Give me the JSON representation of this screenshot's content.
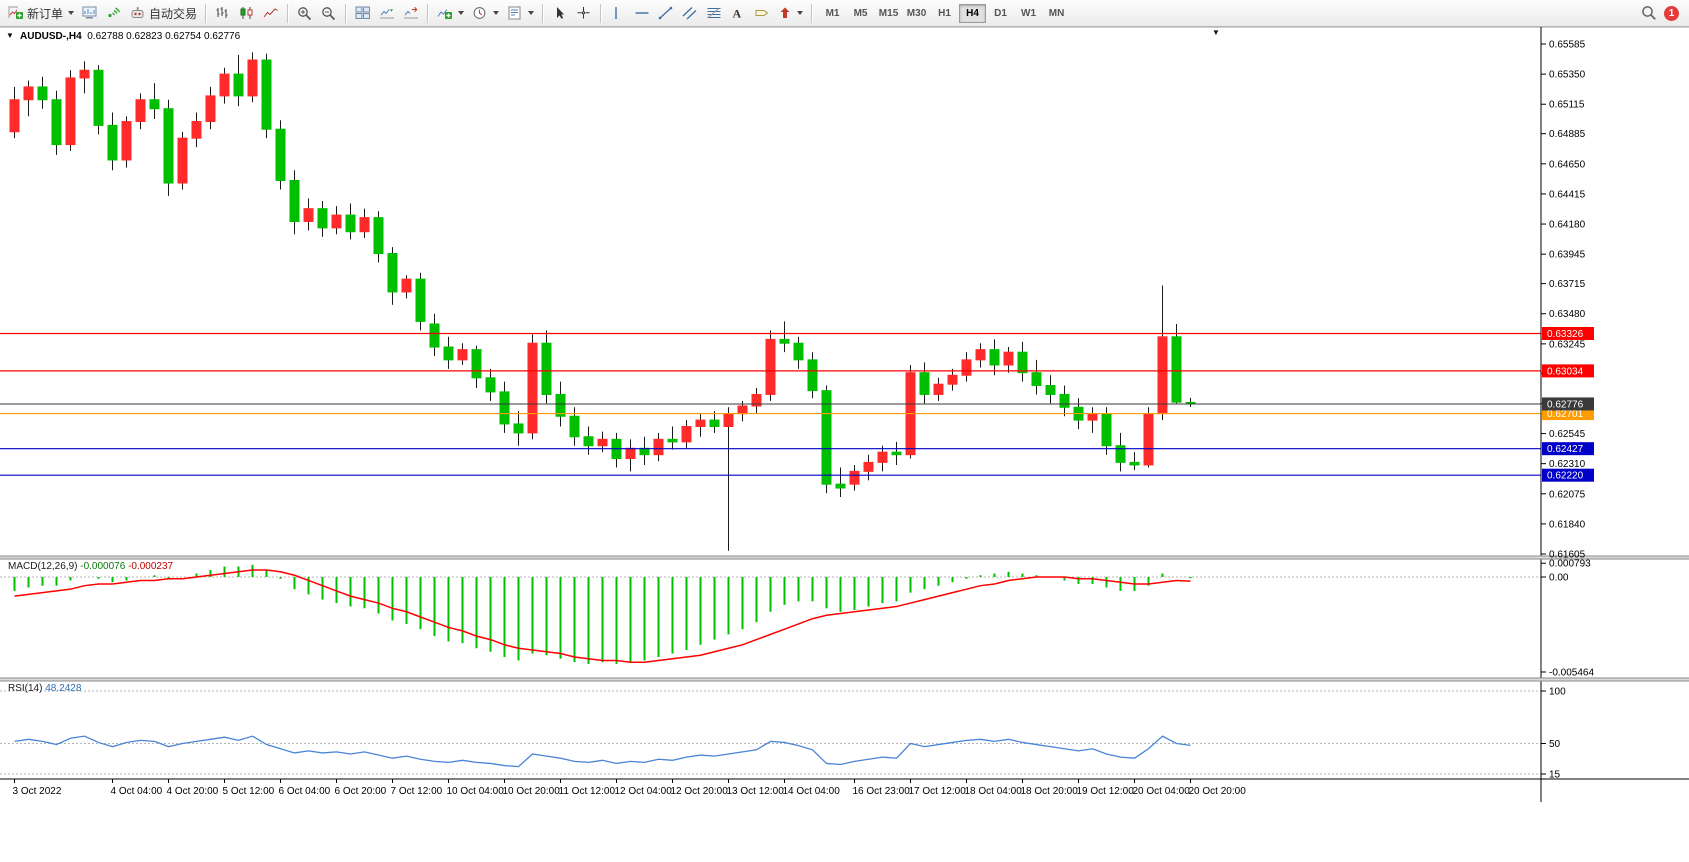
{
  "toolbar": {
    "new_order_label": "新订单",
    "autotrade_label": "自动交易",
    "timeframes": [
      "M1",
      "M5",
      "M15",
      "M30",
      "H1",
      "H4",
      "D1",
      "W1",
      "MN"
    ],
    "active_timeframe": "H4",
    "notification_count": "1",
    "icons": {
      "one_click": "▼",
      "overflow": "▼"
    }
  },
  "chart": {
    "symbol_period": "AUDUSD-,H4",
    "ohlc_display": "0.62788 0.62823 0.62754 0.62776"
  },
  "chart_data": {
    "type": "candlestick",
    "symbol": "AUDUSD-",
    "timeframe": "H4",
    "current_bar": {
      "open": "0.62788",
      "high": "0.62823",
      "low": "0.62754",
      "close": "0.62776"
    },
    "colors": {
      "up": "#FF2A2A",
      "down": "#00BE00",
      "wick": "#1a1a1a",
      "macd": "#00BE00",
      "signal": "#FF0000",
      "rsi": "#4985D6"
    },
    "price_axis": [
      "0.65585",
      "0.65350",
      "0.65115",
      "0.64885",
      "0.64650",
      "0.64415",
      "0.64180",
      "0.63945",
      "0.63715",
      "0.63480",
      "0.63245",
      "0.63015",
      "0.62780",
      "0.62545",
      "0.62310",
      "0.62075",
      "0.61840",
      "0.61605"
    ],
    "time_axis": [
      {
        "bar": 0,
        "label": "3 Oct 2022"
      },
      {
        "bar": 7,
        "label": "4 Oct 04:00"
      },
      {
        "bar": 11,
        "label": "4 Oct 20:00"
      },
      {
        "bar": 15,
        "label": "5 Oct 12:00"
      },
      {
        "bar": 19,
        "label": "6 Oct 04:00"
      },
      {
        "bar": 23,
        "label": "6 Oct 20:00"
      },
      {
        "bar": 27,
        "label": "7 Oct 12:00"
      },
      {
        "bar": 31,
        "label": "10 Oct 04:00"
      },
      {
        "bar": 35,
        "label": "10 Oct 20:00"
      },
      {
        "bar": 39,
        "label": "11 Oct 12:00"
      },
      {
        "bar": 43,
        "label": "12 Oct 04:00"
      },
      {
        "bar": 47,
        "label": "12 Oct 20:00"
      },
      {
        "bar": 51,
        "label": "13 Oct 12:00"
      },
      {
        "bar": 55,
        "label": "14 Oct 04:00"
      },
      {
        "bar": 60,
        "label": "16 Oct 23:00"
      },
      {
        "bar": 64,
        "label": "17 Oct 12:00"
      },
      {
        "bar": 68,
        "label": "18 Oct 04:00"
      },
      {
        "bar": 72,
        "label": "18 Oct 20:00"
      },
      {
        "bar": 76,
        "label": "19 Oct 12:00"
      },
      {
        "bar": 80,
        "label": "20 Oct 04:00"
      },
      {
        "bar": 84,
        "label": "20 Oct 20:00"
      }
    ],
    "candles": [
      [
        0.649,
        0.6525,
        0.6485,
        0.6515
      ],
      [
        0.6515,
        0.653,
        0.6502,
        0.6525
      ],
      [
        0.6525,
        0.6533,
        0.6508,
        0.6515
      ],
      [
        0.6515,
        0.6522,
        0.6472,
        0.648
      ],
      [
        0.648,
        0.6538,
        0.6475,
        0.6532
      ],
      [
        0.6532,
        0.6545,
        0.652,
        0.6538
      ],
      [
        0.6538,
        0.6542,
        0.6488,
        0.6495
      ],
      [
        0.6495,
        0.6505,
        0.646,
        0.6468
      ],
      [
        0.6468,
        0.6502,
        0.6462,
        0.6498
      ],
      [
        0.6498,
        0.652,
        0.6492,
        0.6515
      ],
      [
        0.6515,
        0.6528,
        0.65,
        0.6508
      ],
      [
        0.6508,
        0.6515,
        0.644,
        0.645
      ],
      [
        0.645,
        0.649,
        0.6445,
        0.6485
      ],
      [
        0.6485,
        0.6505,
        0.6478,
        0.6498
      ],
      [
        0.6498,
        0.6525,
        0.6492,
        0.6518
      ],
      [
        0.6518,
        0.654,
        0.6512,
        0.6535
      ],
      [
        0.6535,
        0.655,
        0.651,
        0.6518
      ],
      [
        0.6518,
        0.6552,
        0.6513,
        0.6546
      ],
      [
        0.6546,
        0.6551,
        0.6485,
        0.6492
      ],
      [
        0.6492,
        0.6499,
        0.6445,
        0.6452
      ],
      [
        0.6452,
        0.646,
        0.641,
        0.642
      ],
      [
        0.642,
        0.6438,
        0.6413,
        0.643
      ],
      [
        0.643,
        0.6436,
        0.6408,
        0.6415
      ],
      [
        0.6415,
        0.6432,
        0.641,
        0.6425
      ],
      [
        0.6425,
        0.6434,
        0.6406,
        0.6412
      ],
      [
        0.6412,
        0.643,
        0.6407,
        0.6423
      ],
      [
        0.6423,
        0.6428,
        0.6388,
        0.6395
      ],
      [
        0.6395,
        0.64,
        0.6355,
        0.6365
      ],
      [
        0.6365,
        0.6378,
        0.636,
        0.6375
      ],
      [
        0.6375,
        0.638,
        0.6335,
        0.6342
      ],
      [
        0.634,
        0.6348,
        0.6315,
        0.6322
      ],
      [
        0.6322,
        0.633,
        0.6305,
        0.6312
      ],
      [
        0.6312,
        0.6325,
        0.6308,
        0.632
      ],
      [
        0.632,
        0.6323,
        0.629,
        0.6298
      ],
      [
        0.6298,
        0.6305,
        0.628,
        0.6287
      ],
      [
        0.6287,
        0.6295,
        0.6255,
        0.6262
      ],
      [
        0.6262,
        0.6272,
        0.6245,
        0.6255
      ],
      [
        0.6255,
        0.6332,
        0.625,
        0.6325
      ],
      [
        0.6325,
        0.6335,
        0.6278,
        0.6285
      ],
      [
        0.6285,
        0.6295,
        0.626,
        0.6268
      ],
      [
        0.6268,
        0.6275,
        0.6245,
        0.6252
      ],
      [
        0.6252,
        0.626,
        0.6238,
        0.6245
      ],
      [
        0.6245,
        0.6256,
        0.624,
        0.625
      ],
      [
        0.625,
        0.6255,
        0.6228,
        0.6235
      ],
      [
        0.6235,
        0.625,
        0.6225,
        0.6243
      ],
      [
        0.6243,
        0.6252,
        0.623,
        0.6238
      ],
      [
        0.6238,
        0.6255,
        0.6233,
        0.625
      ],
      [
        0.625,
        0.626,
        0.6242,
        0.6248
      ],
      [
        0.6248,
        0.6265,
        0.6243,
        0.626
      ],
      [
        0.626,
        0.627,
        0.6252,
        0.6265
      ],
      [
        0.6265,
        0.6272,
        0.6255,
        0.626
      ],
      [
        0.626,
        0.6275,
        0.6163,
        0.627
      ],
      [
        0.627,
        0.628,
        0.6264,
        0.6276
      ],
      [
        0.6276,
        0.629,
        0.627,
        0.6285
      ],
      [
        0.6285,
        0.6335,
        0.628,
        0.6328
      ],
      [
        0.6328,
        0.6342,
        0.6318,
        0.6325
      ],
      [
        0.6325,
        0.633,
        0.6305,
        0.6312
      ],
      [
        0.6312,
        0.6318,
        0.6282,
        0.6288
      ],
      [
        0.6288,
        0.6292,
        0.6208,
        0.6215
      ],
      [
        0.6215,
        0.6228,
        0.6205,
        0.6212
      ],
      [
        0.6215,
        0.623,
        0.621,
        0.6225
      ],
      [
        0.6225,
        0.6238,
        0.6218,
        0.6232
      ],
      [
        0.6232,
        0.6245,
        0.6225,
        0.624
      ],
      [
        0.624,
        0.6248,
        0.623,
        0.6238
      ],
      [
        0.6238,
        0.6308,
        0.6235,
        0.6302
      ],
      [
        0.6302,
        0.631,
        0.6278,
        0.6285
      ],
      [
        0.6285,
        0.6298,
        0.628,
        0.6293
      ],
      [
        0.6293,
        0.6305,
        0.6288,
        0.63
      ],
      [
        0.63,
        0.6318,
        0.6295,
        0.6312
      ],
      [
        0.6312,
        0.6325,
        0.6306,
        0.632
      ],
      [
        0.632,
        0.6328,
        0.63,
        0.6308
      ],
      [
        0.6308,
        0.6322,
        0.6302,
        0.6318
      ],
      [
        0.6318,
        0.6326,
        0.6295,
        0.6302
      ],
      [
        0.6302,
        0.6312,
        0.6285,
        0.6292
      ],
      [
        0.6292,
        0.63,
        0.6278,
        0.6285
      ],
      [
        0.6285,
        0.6292,
        0.6268,
        0.6275
      ],
      [
        0.6275,
        0.6282,
        0.6258,
        0.6265
      ],
      [
        0.6265,
        0.6275,
        0.6255,
        0.627
      ],
      [
        0.627,
        0.6275,
        0.6238,
        0.6245
      ],
      [
        0.6245,
        0.6255,
        0.6225,
        0.6232
      ],
      [
        0.6232,
        0.624,
        0.6226,
        0.623
      ],
      [
        0.623,
        0.6275,
        0.6228,
        0.627
      ],
      [
        0.627,
        0.637,
        0.6265,
        0.633
      ],
      [
        0.633,
        0.634,
        0.6278,
        0.6279
      ],
      [
        0.62788,
        0.62823,
        0.62754,
        0.62776
      ]
    ],
    "hlines": [
      {
        "name": "resistance-1",
        "price": 0.63326,
        "label": "0.63326",
        "color": "#FF0000"
      },
      {
        "name": "resistance-2",
        "price": 0.63034,
        "label": "0.63034",
        "color": "#FF0000"
      },
      {
        "name": "orange-level",
        "price": 0.62701,
        "label": "0.62701",
        "color": "#FF9C00"
      },
      {
        "name": "support-1",
        "price": 0.62427,
        "label": "0.62427",
        "color": "#0000C8"
      },
      {
        "name": "support-2",
        "price": 0.6222,
        "label": "0.62220",
        "color": "#0000C8"
      }
    ],
    "bid": {
      "price": 0.62776,
      "label": "0.62776",
      "color": "#3A3A3A"
    },
    "macd": {
      "name": "MACD(12,26,9)",
      "value_main": "-0.000076",
      "value_signal": "-0.000237",
      "axis": [
        "0.000793",
        "0.00",
        "-0.005464"
      ],
      "values": [
        -0.0008,
        -0.0006,
        -0.0005,
        -0.0005,
        -0.0002,
        0.0,
        -0.0001,
        -0.0003,
        -0.0002,
        0.0,
        0.0001,
        -0.0001,
        0.0,
        0.0002,
        0.0004,
        0.0006,
        0.0006,
        0.0007,
        0.0004,
        -0.0001,
        -0.0007,
        -0.001,
        -0.0013,
        -0.0015,
        -0.0017,
        -0.0018,
        -0.0021,
        -0.0025,
        -0.0027,
        -0.003,
        -0.0034,
        -0.0037,
        -0.0038,
        -0.0041,
        -0.0043,
        -0.0046,
        -0.0048,
        -0.0044,
        -0.0045,
        -0.0047,
        -0.0049,
        -0.005,
        -0.0049,
        -0.005,
        -0.0049,
        -0.0048,
        -0.0046,
        -0.0044,
        -0.0042,
        -0.0039,
        -0.0036,
        -0.0033,
        -0.003,
        -0.0026,
        -0.002,
        -0.0016,
        -0.0014,
        -0.0014,
        -0.0018,
        -0.002,
        -0.0019,
        -0.0017,
        -0.0015,
        -0.0014,
        -0.0009,
        -0.0007,
        -0.0005,
        -0.0003,
        -0.0001,
        0.0001,
        0.0002,
        0.0003,
        0.0002,
        0.0001,
        0.0,
        -0.0002,
        -0.0004,
        -0.0004,
        -0.0006,
        -0.0008,
        -0.0008,
        -0.0005,
        0.0002,
        0.0,
        -7.6e-05
      ],
      "signal": [
        -0.0011,
        -0.001,
        -0.0009,
        -0.0008,
        -0.0007,
        -0.0005,
        -0.0004,
        -0.0004,
        -0.0003,
        -0.0002,
        -0.0002,
        -0.0001,
        -0.0001,
        0.0,
        0.0001,
        0.0002,
        0.0003,
        0.0004,
        0.0004,
        0.0003,
        0.0001,
        -0.0002,
        -0.0005,
        -0.0008,
        -0.0011,
        -0.0013,
        -0.0015,
        -0.0018,
        -0.002,
        -0.0023,
        -0.0026,
        -0.0029,
        -0.0031,
        -0.0034,
        -0.0036,
        -0.0039,
        -0.0041,
        -0.0042,
        -0.0043,
        -0.0044,
        -0.0046,
        -0.0047,
        -0.0048,
        -0.0048,
        -0.0049,
        -0.0049,
        -0.0048,
        -0.0047,
        -0.0046,
        -0.0045,
        -0.0043,
        -0.0041,
        -0.0039,
        -0.0036,
        -0.0033,
        -0.003,
        -0.0027,
        -0.0024,
        -0.0022,
        -0.0021,
        -0.002,
        -0.0019,
        -0.0018,
        -0.0017,
        -0.0015,
        -0.0013,
        -0.0011,
        -0.0009,
        -0.0007,
        -0.0005,
        -0.0004,
        -0.0002,
        -0.0001,
        0.0,
        0.0,
        0.0,
        -0.0001,
        -0.0001,
        -0.0002,
        -0.0003,
        -0.0004,
        -0.0004,
        -0.0003,
        -0.0002,
        -0.000237
      ]
    },
    "rsi": {
      "name": "RSI(14)",
      "value": "48.2428",
      "axis": [
        "100",
        "50",
        "15"
      ],
      "values": [
        52,
        54,
        52,
        49,
        55,
        57,
        51,
        47,
        51,
        53,
        52,
        47,
        50,
        52,
        54,
        56,
        53,
        57,
        49,
        45,
        41,
        43,
        41,
        42,
        40,
        42,
        39,
        36,
        38,
        35,
        33,
        32,
        34,
        32,
        31,
        29,
        28,
        40,
        38,
        36,
        33,
        32,
        34,
        31,
        33,
        32,
        35,
        34,
        37,
        39,
        38,
        40,
        42,
        44,
        52,
        51,
        48,
        44,
        31,
        30,
        33,
        35,
        37,
        36,
        50,
        47,
        49,
        51,
        53,
        54,
        52,
        54,
        51,
        49,
        47,
        45,
        43,
        45,
        40,
        37,
        36,
        45,
        57,
        50,
        48.2428
      ]
    }
  }
}
